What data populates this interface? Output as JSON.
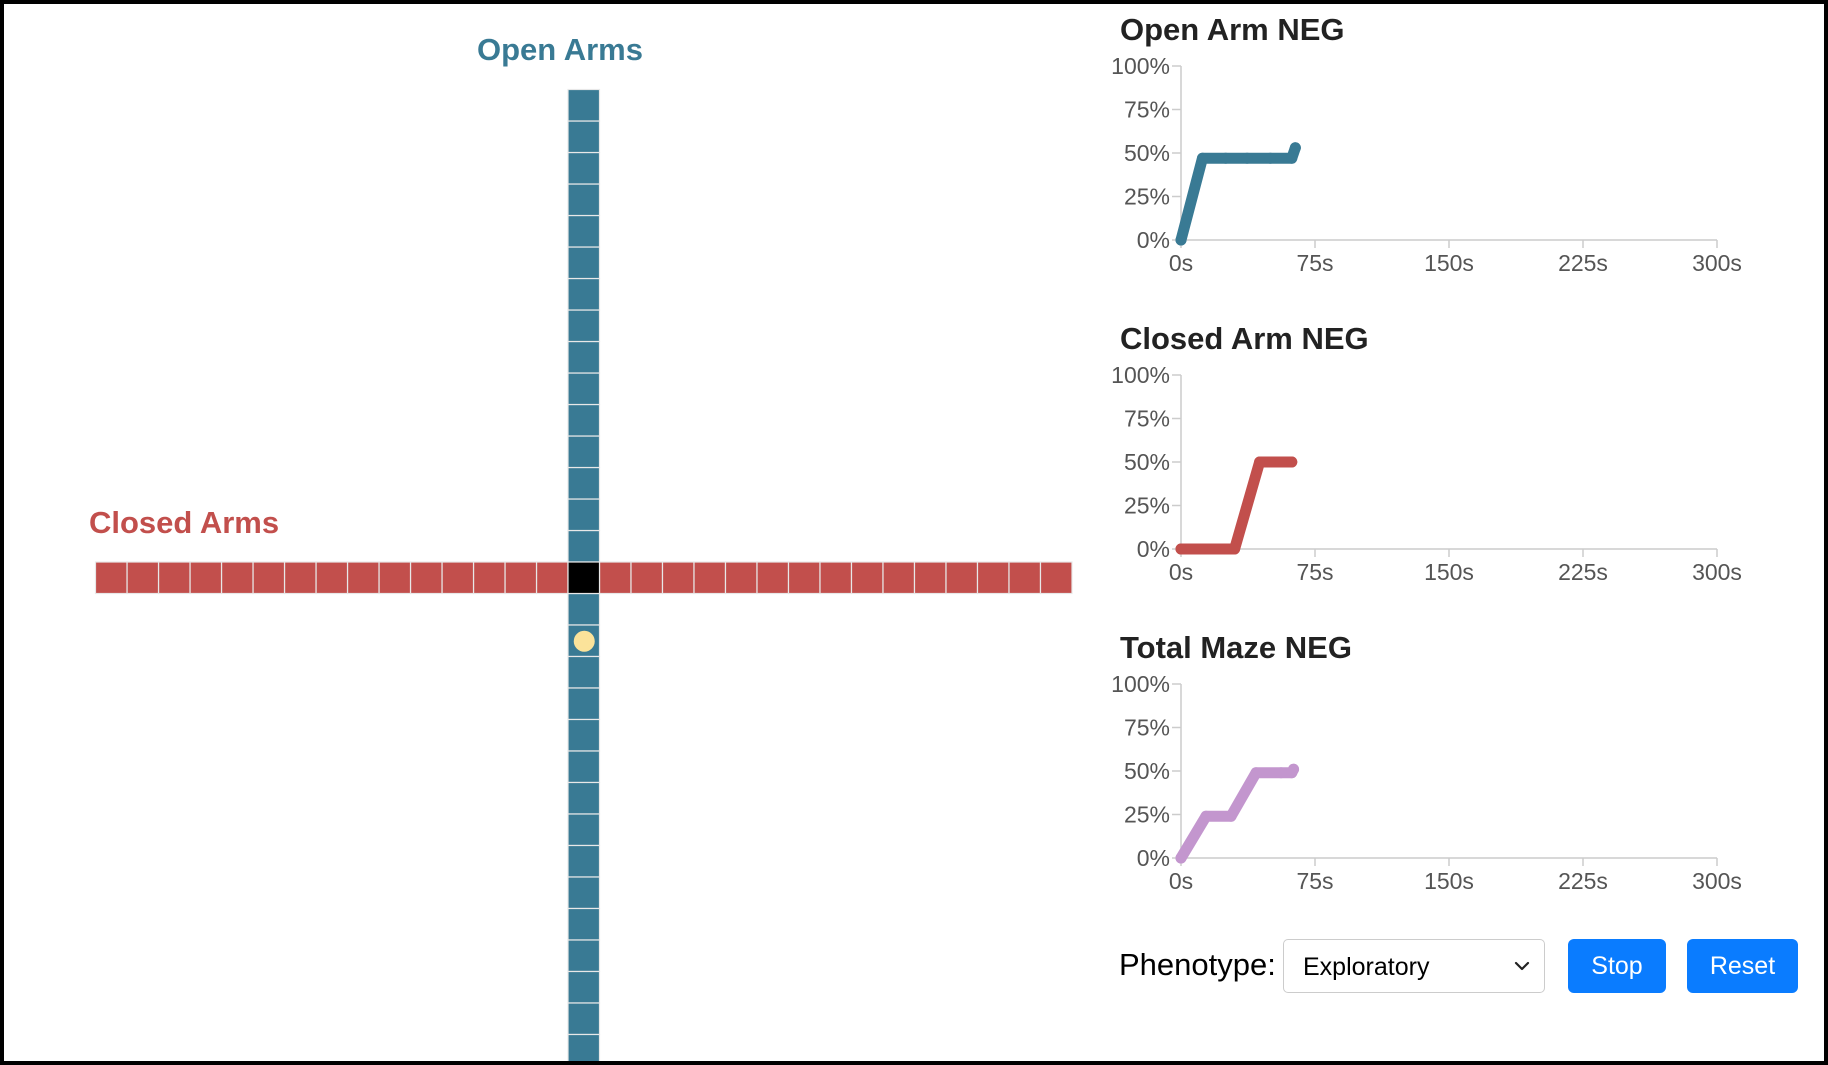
{
  "maze": {
    "open_label": "Open Arms",
    "closed_label": "Closed Arms",
    "colors": {
      "open_arm": "#397a94",
      "closed_arm": "#c24f4c",
      "center": "#000000",
      "subject": "#fbe39a",
      "cell_border": "#e8e8e8"
    },
    "open_arm_cells_north": 15,
    "open_arm_cells_south": 15,
    "closed_arm_cells_west": 15,
    "closed_arm_cells_east": 15,
    "subject_position": {
      "arm": "south",
      "cell_index": 1
    }
  },
  "chart_data": [
    {
      "type": "line",
      "title": "Open Arm NEG",
      "color": "#397a94",
      "x": [
        0,
        12,
        25,
        37,
        50,
        62,
        64
      ],
      "y": [
        0,
        47,
        47,
        47,
        47,
        47,
        53
      ],
      "xticks": [
        "0s",
        "75s",
        "150s",
        "225s",
        "300s"
      ],
      "yticks": [
        "0%",
        "25%",
        "50%",
        "75%",
        "100%"
      ],
      "xlim": [
        0,
        300
      ],
      "ylim": [
        0,
        100
      ],
      "grid": false,
      "xlabel": "",
      "ylabel": ""
    },
    {
      "type": "line",
      "title": "Closed Arm NEG",
      "color": "#c24f4c",
      "x": [
        0,
        12,
        25,
        30,
        44,
        50,
        62
      ],
      "y": [
        0,
        0,
        0,
        0,
        50,
        50,
        50
      ],
      "xticks": [
        "0s",
        "75s",
        "150s",
        "225s",
        "300s"
      ],
      "yticks": [
        "0%",
        "25%",
        "50%",
        "75%",
        "100%"
      ],
      "xlim": [
        0,
        300
      ],
      "ylim": [
        0,
        100
      ],
      "grid": false,
      "xlabel": "",
      "ylabel": ""
    },
    {
      "type": "line",
      "title": "Total Maze NEG",
      "color": "#c396ce",
      "x": [
        0,
        14,
        28,
        42,
        56,
        62,
        63
      ],
      "y": [
        0,
        24,
        24,
        49,
        49,
        49,
        51
      ],
      "xticks": [
        "0s",
        "75s",
        "150s",
        "225s",
        "300s"
      ],
      "yticks": [
        "0%",
        "25%",
        "50%",
        "75%",
        "100%"
      ],
      "xlim": [
        0,
        300
      ],
      "ylim": [
        0,
        100
      ],
      "grid": false,
      "xlabel": "",
      "ylabel": ""
    }
  ],
  "controls": {
    "phenotype_label": "Phenotype:",
    "phenotype_value": "Exploratory",
    "stop_label": "Stop",
    "reset_label": "Reset",
    "button_color": "#0a7cff"
  }
}
